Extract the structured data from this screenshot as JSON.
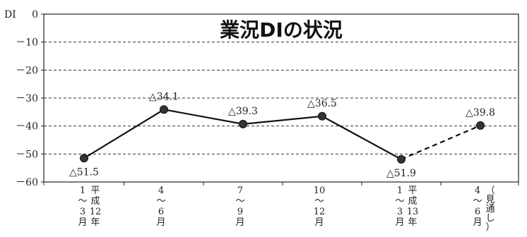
{
  "chart_data": {
    "type": "line",
    "title": "業況DIの状況",
    "ylabel": "DI",
    "ylim": [
      -60,
      0
    ],
    "yticks": [
      0,
      -10,
      -20,
      -30,
      -40,
      -50,
      -60
    ],
    "ytick_labels": [
      "0",
      "－10",
      "－20",
      "－30",
      "－40",
      "－50",
      "－60"
    ],
    "grid": "horizontal dashed",
    "categories": [
      {
        "top": "1〜3",
        "bottom": "月",
        "era_top": "平成",
        "era_year": "12",
        "era_unit": "年"
      },
      {
        "top": "4〜6",
        "bottom": "月"
      },
      {
        "top": "7〜9",
        "bottom": "月"
      },
      {
        "top": "10〜12",
        "bottom": "月"
      },
      {
        "top": "1〜3",
        "bottom": "月",
        "era_top": "平成",
        "era_year": "13",
        "era_unit": "年"
      },
      {
        "top": "4〜6",
        "bottom": "月",
        "note": "（見通し）"
      }
    ],
    "series": [
      {
        "values": [
          -51.5,
          -34.1,
          -39.3,
          -36.5,
          -51.9,
          -39.8
        ],
        "labels": [
          "△51.5",
          "△34.1",
          "△39.3",
          "△36.5",
          "△51.9",
          "△39.8"
        ],
        "forecast_last": true
      }
    ],
    "colors": {
      "line": "#111111",
      "marker": "#333333",
      "grid": "#333333"
    }
  }
}
